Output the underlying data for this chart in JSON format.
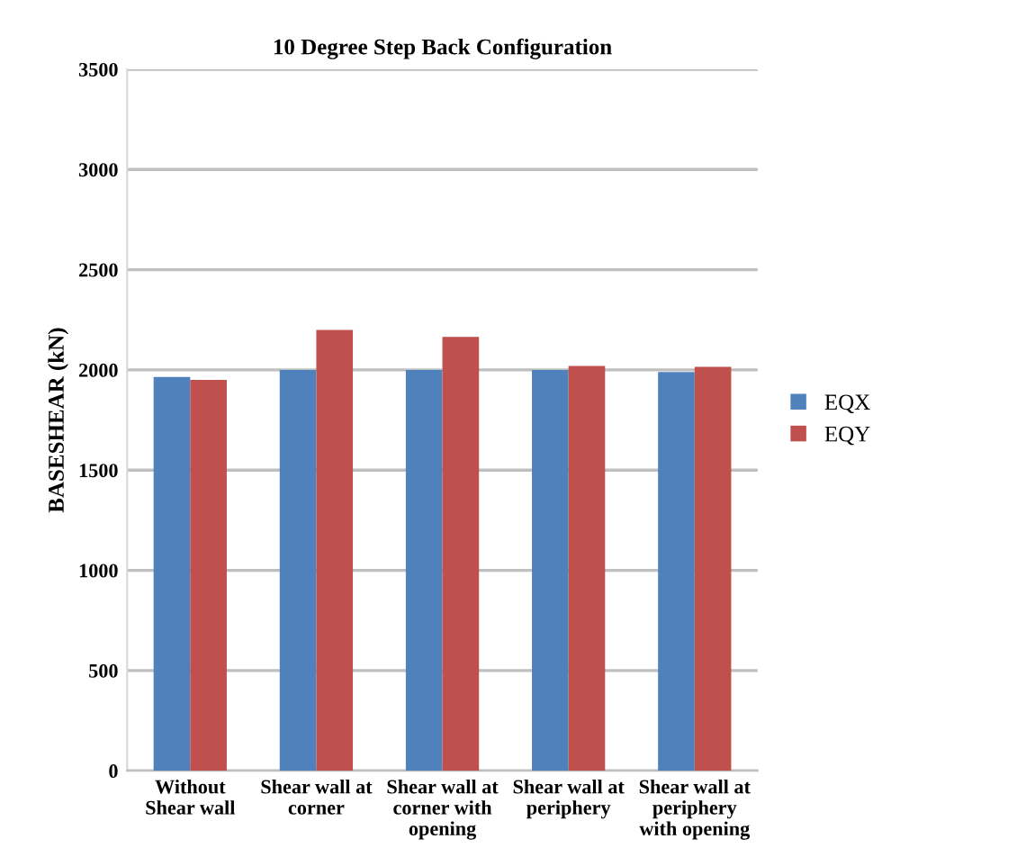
{
  "chart_data": {
    "type": "bar",
    "title": "10 Degree Step Back Configuration",
    "ylabel": "BASESHEAR (kN)",
    "categories": [
      "Without\nShear wall",
      "Shear wall at\ncorner",
      "Shear wall at\ncorner with\nopening",
      "Shear wall at\nperiphery",
      "Shear wall at\nperiphery\nwith opening"
    ],
    "series": [
      {
        "name": "EQX",
        "color": "#4f81bd",
        "values": [
          1965,
          2000,
          2000,
          2000,
          1990
        ]
      },
      {
        "name": "EQY",
        "color": "#c0504d",
        "values": [
          1950,
          2200,
          2165,
          2020,
          2015
        ]
      }
    ],
    "ylim": [
      0,
      3500
    ],
    "yticks": [
      0,
      500,
      1000,
      1500,
      2000,
      2500,
      3000,
      3500
    ],
    "grid": "y",
    "legend": "right"
  }
}
